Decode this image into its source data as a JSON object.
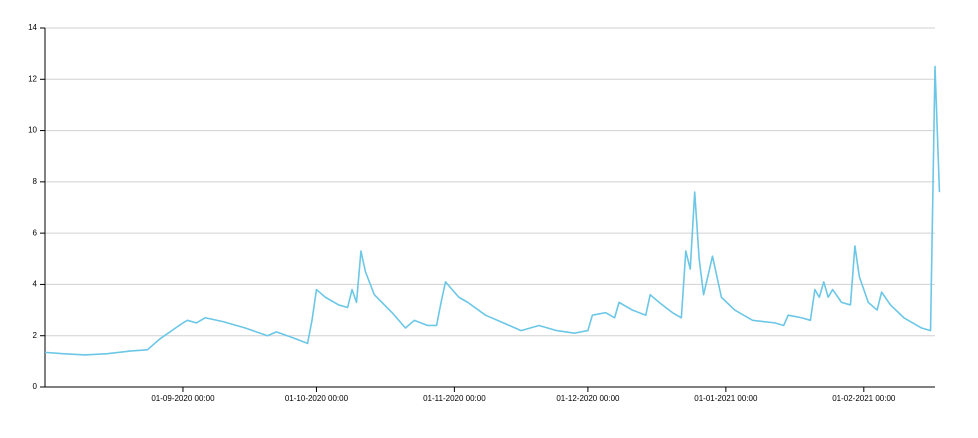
{
  "chart_data": {
    "type": "line",
    "x": [
      "2020-08-01",
      "2020-08-05",
      "2020-08-10",
      "2020-08-15",
      "2020-08-20",
      "2020-08-24",
      "2020-08-27",
      "2020-09-01",
      "2020-09-02",
      "2020-09-04",
      "2020-09-06",
      "2020-09-10",
      "2020-09-15",
      "2020-09-20",
      "2020-09-22",
      "2020-09-26",
      "2020-09-29",
      "2020-09-30",
      "2020-10-01",
      "2020-10-03",
      "2020-10-06",
      "2020-10-08",
      "2020-10-09",
      "2020-10-10",
      "2020-10-11",
      "2020-10-12",
      "2020-10-14",
      "2020-10-18",
      "2020-10-21",
      "2020-10-23",
      "2020-10-26",
      "2020-10-28",
      "2020-10-29",
      "2020-10-30",
      "2020-11-02",
      "2020-11-04",
      "2020-11-08",
      "2020-11-12",
      "2020-11-16",
      "2020-11-20",
      "2020-11-24",
      "2020-11-28",
      "2020-12-01",
      "2020-12-02",
      "2020-12-05",
      "2020-12-07",
      "2020-12-08",
      "2020-12-11",
      "2020-12-14",
      "2020-12-15",
      "2020-12-17",
      "2020-12-20",
      "2020-12-22",
      "2020-12-23",
      "2020-12-24",
      "2020-12-25",
      "2020-12-26",
      "2020-12-27",
      "2020-12-29",
      "2020-12-31",
      "2021-01-03",
      "2021-01-07",
      "2021-01-12",
      "2021-01-14",
      "2021-01-15",
      "2021-01-18",
      "2021-01-20",
      "2021-01-21",
      "2021-01-22",
      "2021-01-23",
      "2021-01-24",
      "2021-01-25",
      "2021-01-27",
      "2021-01-29",
      "2021-01-30",
      "2021-01-31",
      "2021-02-02",
      "2021-02-04",
      "2021-02-05",
      "2021-02-07",
      "2021-02-10",
      "2021-02-14",
      "2021-02-16",
      "2021-02-17",
      "2021-02-18"
    ],
    "series": [
      {
        "color": "#6cc7e6",
        "values": [
          1.35,
          1.3,
          1.25,
          1.3,
          1.4,
          1.45,
          1.9,
          2.5,
          2.6,
          2.5,
          2.7,
          2.55,
          2.3,
          2.0,
          2.15,
          1.9,
          1.7,
          2.6,
          3.8,
          3.5,
          3.2,
          3.1,
          3.8,
          3.3,
          5.3,
          4.5,
          3.6,
          2.9,
          2.3,
          2.6,
          2.4,
          2.4,
          3.3,
          4.1,
          3.5,
          3.3,
          2.8,
          2.5,
          2.2,
          2.4,
          2.2,
          2.1,
          2.2,
          2.8,
          2.9,
          2.7,
          3.3,
          3.0,
          2.8,
          3.6,
          3.3,
          2.9,
          2.7,
          5.3,
          4.6,
          7.6,
          5.0,
          3.6,
          5.1,
          3.5,
          3.0,
          2.6,
          2.5,
          2.4,
          2.8,
          2.7,
          2.6,
          3.8,
          3.5,
          4.1,
          3.5,
          3.8,
          3.3,
          3.2,
          5.5,
          4.3,
          3.3,
          3.0,
          3.7,
          3.2,
          2.7,
          2.3,
          2.2,
          12.5,
          7.6
        ]
      }
    ],
    "xlim": [
      "2020-08-01",
      "2021-02-18"
    ],
    "xticks": [
      {
        "value": "2020-09-01",
        "label": "01-09-2020 00:00"
      },
      {
        "value": "2020-10-01",
        "label": "01-10-2020 00:00"
      },
      {
        "value": "2020-11-01",
        "label": "01-11-2020 00:00"
      },
      {
        "value": "2020-12-01",
        "label": "01-12-2020 00:00"
      },
      {
        "value": "2021-01-01",
        "label": "01-01-2021 00:00"
      },
      {
        "value": "2021-02-01",
        "label": "01-02-2021 00:00"
      }
    ],
    "ylim": [
      0,
      14
    ],
    "yticks": [
      0,
      2,
      4,
      6,
      8,
      10,
      12,
      14
    ],
    "grid": true
  }
}
